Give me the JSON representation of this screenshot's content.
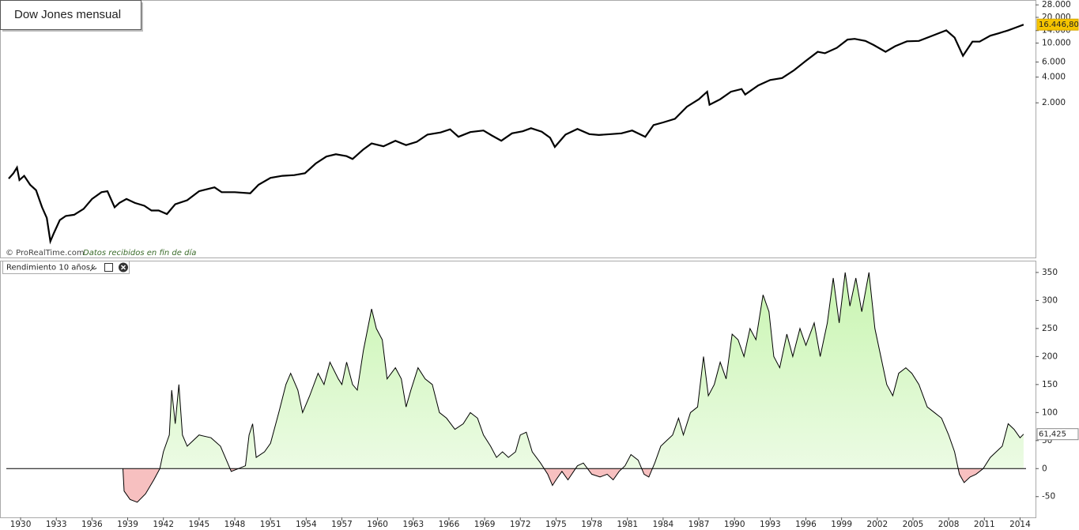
{
  "chart_data": [
    {
      "type": "line",
      "title": "Dow Jones mensual",
      "source": "© ProRealTime.com",
      "note": "Datos recibidos en fin de día",
      "log_scale": true,
      "color": "#000000",
      "xlim": [
        1928.8,
        2015.3
      ],
      "ylim": [
        31,
        28700
      ],
      "yticks": [
        {
          "value": 2000,
          "label": "2.000"
        },
        {
          "value": 4000,
          "label": "4.000"
        },
        {
          "value": 6000,
          "label": "6.000"
        },
        {
          "value": 10000,
          "label": "10.000"
        },
        {
          "value": 14000,
          "label": "14.000"
        },
        {
          "value": 20000,
          "label": "20.000"
        },
        {
          "value": 28000,
          "label": "28.000"
        }
      ],
      "end_label": "16.446,80",
      "x": [
        1929.0,
        1929.4,
        1929.7,
        1929.9,
        1930.3,
        1930.8,
        1931.3,
        1931.8,
        1932.2,
        1932.5,
        1932.8,
        1933.3,
        1933.8,
        1934.5,
        1935.3,
        1936,
        1936.8,
        1937.3,
        1937.9,
        1938.3,
        1938.9,
        1939.6,
        1940.4,
        1941,
        1941.6,
        1942.3,
        1943,
        1944,
        1945,
        1946.3,
        1946.9,
        1948,
        1949.3,
        1950,
        1951,
        1952,
        1953,
        1953.9,
        1954.8,
        1955.7,
        1956.5,
        1957.4,
        1957.9,
        1958.8,
        1959.5,
        1960.5,
        1961.5,
        1962.4,
        1963.3,
        1964.2,
        1965.3,
        1966.1,
        1966.8,
        1967.8,
        1968.9,
        1969.6,
        1970.4,
        1971.3,
        1972.2,
        1972.9,
        1973.8,
        1974.5,
        1974.9,
        1975.8,
        1976.8,
        1977.8,
        1978.6,
        1979.6,
        1980.5,
        1981.4,
        1982.5,
        1983.2,
        1984,
        1985,
        1986,
        1987.0,
        1987.7,
        1987.9,
        1988.8,
        1989.7,
        1990.6,
        1990.9,
        1992,
        1993,
        1994,
        1995,
        1996,
        1997,
        1997.6,
        1998.6,
        1999.5,
        2000.1,
        2001,
        2001.7,
        2002.7,
        2003.5,
        2004.5,
        2005.5,
        2006.5,
        2007.8,
        2008.5,
        2009.2,
        2010,
        2010.6,
        2011.5,
        2012.2,
        2013,
        2013.8,
        2014.3
      ],
      "values": [
        260,
        300,
        350,
        250,
        280,
        220,
        190,
        120,
        90,
        48,
        60,
        85,
        95,
        98,
        115,
        150,
        180,
        185,
        120,
        135,
        150,
        135,
        125,
        110,
        110,
        100,
        130,
        145,
        185,
        205,
        180,
        180,
        175,
        220,
        265,
        280,
        285,
        300,
        390,
        470,
        500,
        475,
        440,
        570,
        670,
        620,
        720,
        640,
        700,
        850,
        900,
        980,
        800,
        910,
        950,
        830,
        720,
        880,
        930,
        1010,
        920,
        780,
        610,
        850,
        990,
        860,
        840,
        860,
        880,
        950,
        800,
        1100,
        1180,
        1300,
        1800,
        2200,
        2700,
        1900,
        2200,
        2700,
        2900,
        2500,
        3200,
        3700,
        3900,
        4800,
        6200,
        7900,
        7600,
        8800,
        11000,
        11200,
        10600,
        9500,
        7900,
        9200,
        10500,
        10600,
        12000,
        14100,
        11600,
        7100,
        10400,
        10400,
        12200,
        13000,
        14100,
        15500,
        16446.8
      ]
    },
    {
      "type": "area",
      "legend": "Rendimiento 10 años",
      "xlim": [
        1928.8,
        2015.3
      ],
      "ylim": [
        -87,
        364
      ],
      "yticks": [
        -50,
        0,
        50,
        100,
        150,
        200,
        250,
        300,
        350
      ],
      "xticks": [
        1930,
        1933,
        1936,
        1939,
        1942,
        1945,
        1948,
        1951,
        1954,
        1957,
        1960,
        1963,
        1966,
        1969,
        1972,
        1975,
        1978,
        1981,
        1984,
        1987,
        1990,
        1993,
        1996,
        1999,
        2002,
        2005,
        2008,
        2011,
        2014
      ],
      "color": "#000000",
      "positive_color": "#c8f5b0",
      "negative_color": "#f7c0c0",
      "end_label": "61,425",
      "x": [
        1938.6,
        1938.7,
        1939.2,
        1939.8,
        1940.5,
        1941.2,
        1941.7,
        1942,
        1942.5,
        1942.7,
        1943,
        1943.3,
        1943.6,
        1944,
        1945,
        1946,
        1946.8,
        1947.4,
        1947.7,
        1948.3,
        1948.9,
        1949.2,
        1949.5,
        1949.8,
        1950.5,
        1951,
        1951.7,
        1952.3,
        1952.7,
        1953.3,
        1953.7,
        1954.3,
        1955,
        1955.5,
        1956,
        1956.7,
        1957,
        1957.4,
        1957.9,
        1958.3,
        1958.8,
        1959.5,
        1959.9,
        1960.4,
        1960.8,
        1961.5,
        1962,
        1962.4,
        1962.8,
        1963.4,
        1964,
        1964.6,
        1965.2,
        1965.8,
        1966.5,
        1967.2,
        1967.8,
        1968.4,
        1968.9,
        1969.5,
        1970,
        1970.5,
        1971,
        1971.6,
        1972,
        1972.5,
        1973,
        1973.7,
        1974.3,
        1974.7,
        1975,
        1975.5,
        1976,
        1976.8,
        1977.3,
        1978,
        1978.7,
        1979.3,
        1979.8,
        1980.3,
        1980.8,
        1981.3,
        1981.9,
        1982.4,
        1982.8,
        1983.3,
        1983.8,
        1984.3,
        1984.8,
        1985.3,
        1985.7,
        1986.3,
        1986.9,
        1987.4,
        1987.8,
        1988.3,
        1988.8,
        1989.3,
        1989.8,
        1990.3,
        1990.8,
        1991.3,
        1991.8,
        1992.4,
        1992.9,
        1993.3,
        1993.8,
        1994.4,
        1994.9,
        1995.5,
        1996,
        1996.7,
        1997.2,
        1997.8,
        1998.3,
        1998.8,
        1999.3,
        1999.7,
        2000.2,
        2000.7,
        2001.3,
        2001.8,
        2002.3,
        2002.8,
        2003.3,
        2003.8,
        2004.4,
        2004.9,
        2005.5,
        2006.2,
        2006.8,
        2007.4,
        2008,
        2008.5,
        2008.9,
        2009.3,
        2009.8,
        2010.3,
        2010.9,
        2011.5,
        2012,
        2012.5,
        2013,
        2013.5,
        2014,
        2014.3
      ],
      "values": [
        0,
        -40,
        -55,
        -60,
        -45,
        -20,
        0,
        30,
        60,
        140,
        80,
        150,
        60,
        40,
        60,
        55,
        40,
        10,
        -5,
        0,
        5,
        60,
        80,
        20,
        30,
        45,
        100,
        150,
        170,
        140,
        100,
        130,
        170,
        150,
        190,
        160,
        150,
        190,
        150,
        140,
        210,
        285,
        250,
        230,
        160,
        180,
        160,
        110,
        140,
        180,
        160,
        150,
        100,
        90,
        70,
        80,
        100,
        90,
        60,
        40,
        20,
        30,
        20,
        30,
        60,
        65,
        30,
        10,
        -10,
        -30,
        -20,
        -5,
        -20,
        5,
        10,
        -10,
        -15,
        -10,
        -20,
        -5,
        5,
        25,
        15,
        -10,
        -15,
        10,
        40,
        50,
        60,
        90,
        60,
        100,
        110,
        200,
        130,
        150,
        190,
        160,
        240,
        230,
        200,
        250,
        230,
        310,
        280,
        200,
        180,
        240,
        200,
        250,
        220,
        260,
        200,
        260,
        340,
        260,
        350,
        290,
        340,
        280,
        350,
        250,
        200,
        150,
        130,
        170,
        180,
        170,
        150,
        110,
        100,
        90,
        60,
        30,
        -10,
        -25,
        -15,
        -10,
        0,
        20,
        30,
        40,
        80,
        70,
        55,
        61.425
      ]
    }
  ]
}
